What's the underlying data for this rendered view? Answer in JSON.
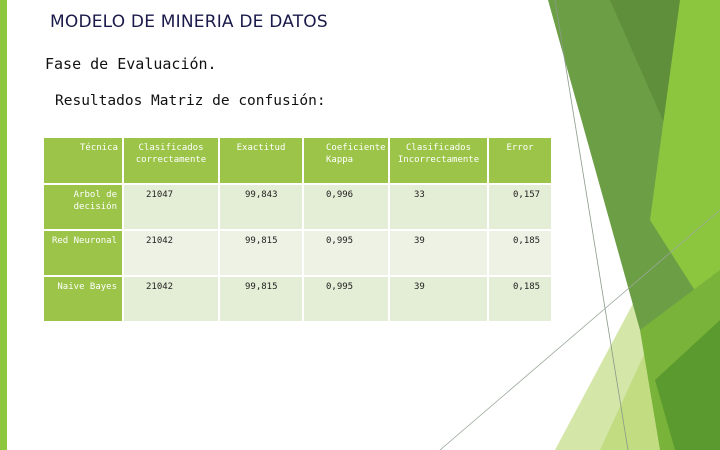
{
  "slide": {
    "title": "MODELO DE MINERIA DE DATOS",
    "subtitle": "Fase de Evaluación.",
    "section_heading": "Resultados Matriz de confusión:"
  },
  "table": {
    "headers": [
      "Técnica",
      "Clasificados correctamente",
      "Exactitud",
      "Coeficiente Kappa",
      "Clasificados Incorrectamente",
      "Error"
    ],
    "rows": [
      {
        "tecnica": "Arbol de decisión",
        "correctos": "21047",
        "exactitud": "99,843",
        "kappa": "0,996",
        "incorrectos": "33",
        "error": "0,157"
      },
      {
        "tecnica": "Red Neuronal",
        "correctos": "21042",
        "exactitud": "99,815",
        "kappa": "0,995",
        "incorrectos": "39",
        "error": "0,185"
      },
      {
        "tecnica": "Naive Bayes",
        "correctos": "21042",
        "exactitud": "99,815",
        "kappa": "0,995",
        "incorrectos": "39",
        "error": "0,185"
      }
    ]
  },
  "colors": {
    "accent_green": "#8dc63f",
    "table_header": "#9bc448",
    "table_cell": "#e4edd5"
  }
}
